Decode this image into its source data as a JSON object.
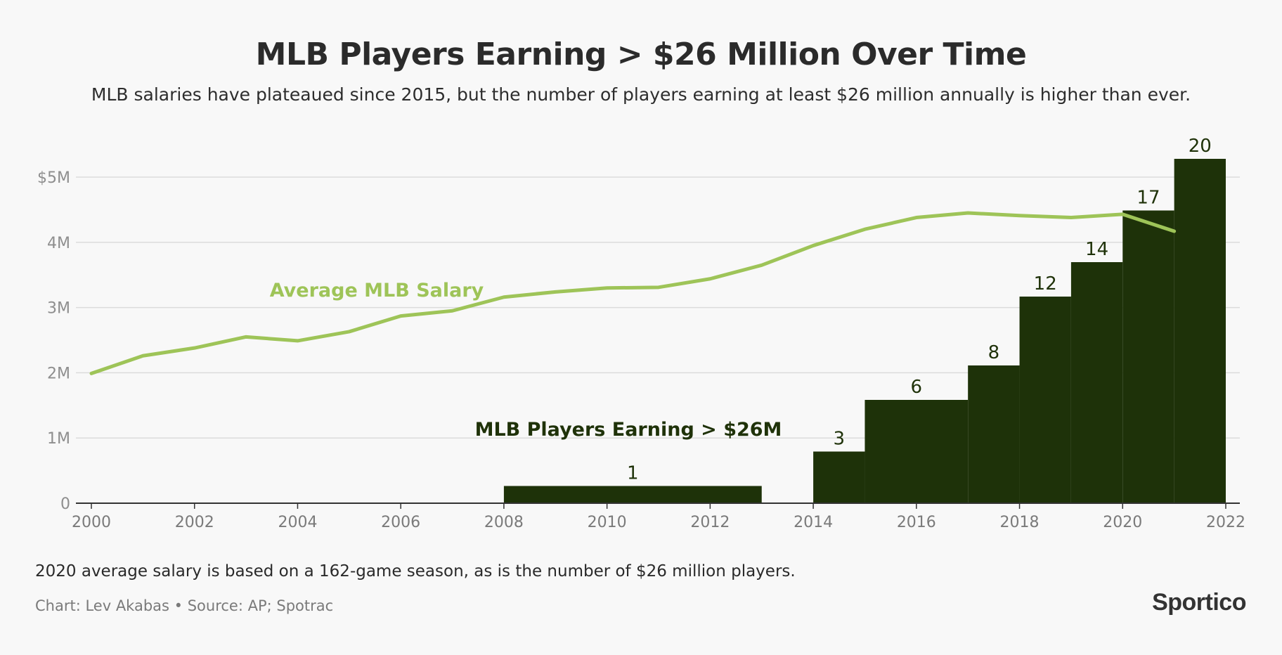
{
  "title": "MLB Players Earning > $26 Million Over Time",
  "subtitle": "MLB salaries have plateaued since 2015, but the number of players earning at least $26 million annually is higher than ever.",
  "note": "2020 average salary is based on a 162-game season, as is the number of $26 million players.",
  "credit": "Chart: Lev Akabas • Source: AP; Spotrac",
  "logo": "Sportico",
  "colors": {
    "bars": "#1e3209",
    "line": "#9ec458",
    "grid": "#dcdcdc",
    "axis": "#333333",
    "bar_label": "#1f3209",
    "line_label": "#9ec458"
  },
  "chart_data": {
    "type": "bar",
    "xlim": [
      2000,
      2022
    ],
    "x_ticks": [
      2000,
      2002,
      2004,
      2006,
      2008,
      2010,
      2012,
      2014,
      2016,
      2018,
      2020,
      2022
    ],
    "y_ticks": [
      {
        "value": 0,
        "label": "0"
      },
      {
        "value": 1,
        "label": "1M"
      },
      {
        "value": 2,
        "label": "2M"
      },
      {
        "value": 3,
        "label": "3M"
      },
      {
        "value": 4,
        "label": "4M"
      },
      {
        "value": 5,
        "label": "$5M"
      }
    ],
    "ylim": [
      0,
      5.4
    ],
    "grid": true,
    "series": [
      {
        "name": "MLB Players Earning > $26M",
        "type": "step-bar",
        "segments": [
          {
            "x0": 2008,
            "x1": 2013,
            "value": 1,
            "label": "1"
          },
          {
            "x0": 2014,
            "x1": 2015,
            "value": 3,
            "label": "3"
          },
          {
            "x0": 2015,
            "x1": 2017,
            "value": 6,
            "label": "6"
          },
          {
            "x0": 2017,
            "x1": 2018,
            "value": 8,
            "label": "8"
          },
          {
            "x0": 2018,
            "x1": 2019,
            "value": 12,
            "label": "12"
          },
          {
            "x0": 2019,
            "x1": 2020,
            "value": 14,
            "label": "14"
          },
          {
            "x0": 2020,
            "x1": 2021,
            "value": 17,
            "label": "17"
          },
          {
            "x0": 2021,
            "x1": 2022,
            "value": 20,
            "label": "20"
          }
        ]
      },
      {
        "name": "Average MLB Salary",
        "type": "line",
        "unit": "$M",
        "x": [
          2000,
          2001,
          2002,
          2003,
          2004,
          2005,
          2006,
          2007,
          2008,
          2009,
          2010,
          2011,
          2012,
          2013,
          2014,
          2015,
          2016,
          2017,
          2018,
          2019,
          2020,
          2021
        ],
        "values": [
          1.99,
          2.26,
          2.38,
          2.55,
          2.49,
          2.63,
          2.87,
          2.95,
          3.16,
          3.24,
          3.3,
          3.31,
          3.44,
          3.65,
          3.95,
          4.2,
          4.38,
          4.45,
          4.41,
          4.38,
          4.43,
          4.17
        ]
      }
    ]
  }
}
